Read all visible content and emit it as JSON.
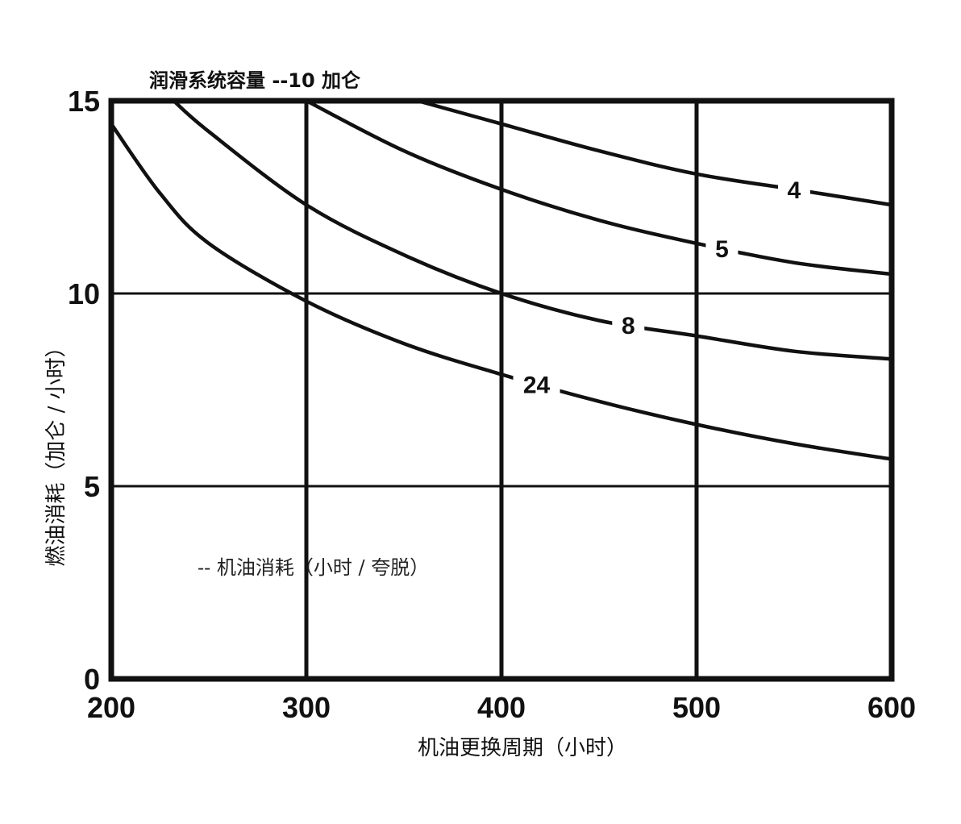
{
  "chart_data": {
    "type": "line",
    "title": "润滑系统容量 --10 加仑",
    "xlabel": "机油更换周期（小时）",
    "ylabel": "燃油消耗（加仑 / 小时）",
    "annotation": "-- 机油消耗（小时 / 夸脱）",
    "xlim": [
      200,
      600
    ],
    "ylim": [
      0,
      15
    ],
    "xticks": [
      200,
      300,
      400,
      500,
      600
    ],
    "yticks": [
      0,
      5,
      10,
      15
    ],
    "grid": true,
    "legend": "none",
    "series": [
      {
        "name": "4",
        "label_at_x": 550,
        "x": [
          357,
          400,
          450,
          500,
          550,
          600
        ],
        "y": [
          15.0,
          14.4,
          13.7,
          13.1,
          12.7,
          12.3
        ]
      },
      {
        "name": "5",
        "label_at_x": 513,
        "x": [
          300,
          350,
          400,
          450,
          500,
          550,
          600
        ],
        "y": [
          15.0,
          13.7,
          12.7,
          11.9,
          11.3,
          10.8,
          10.5
        ]
      },
      {
        "name": "8",
        "label_at_x": 465,
        "x": [
          232,
          250,
          300,
          350,
          400,
          450,
          500,
          550,
          600
        ],
        "y": [
          15.0,
          14.2,
          12.3,
          11.0,
          10.0,
          9.3,
          8.9,
          8.5,
          8.3
        ]
      },
      {
        "name": "24",
        "label_at_x": 418,
        "x": [
          200,
          225,
          250,
          300,
          350,
          400,
          450,
          500,
          550,
          600
        ],
        "y": [
          14.4,
          12.6,
          11.3,
          9.8,
          8.7,
          7.9,
          7.2,
          6.6,
          6.1,
          5.7
        ]
      }
    ]
  }
}
